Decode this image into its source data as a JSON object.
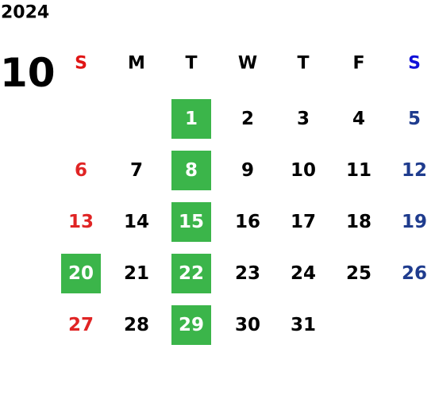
{
  "year": "2024",
  "month": "10",
  "weekdays": [
    "S",
    "M",
    "T",
    "W",
    "T",
    "F",
    "S"
  ],
  "weeks": [
    [
      null,
      null,
      1,
      2,
      3,
      4,
      5
    ],
    [
      6,
      7,
      8,
      9,
      10,
      11,
      12
    ],
    [
      13,
      14,
      15,
      16,
      17,
      18,
      19
    ],
    [
      20,
      21,
      22,
      23,
      24,
      25,
      26
    ],
    [
      27,
      28,
      29,
      30,
      31,
      null,
      null
    ]
  ],
  "highlighted": [
    1,
    8,
    15,
    20,
    22,
    29
  ]
}
